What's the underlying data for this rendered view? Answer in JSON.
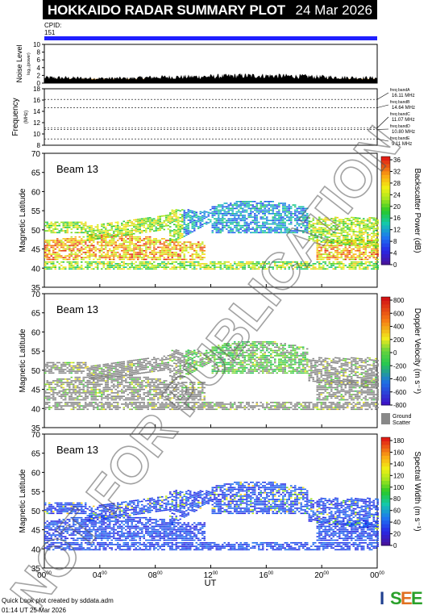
{
  "header": {
    "title": "HOKKAIDO RADAR SUMMARY PLOT",
    "date": "24 Mar 2026"
  },
  "cpid": {
    "label": "CPID:",
    "value": "151"
  },
  "noise": {
    "ylabel": "Noise Level",
    "unit": "log₁₀(power)",
    "ticks": [
      "0",
      "2",
      "4",
      "6",
      "8",
      "10"
    ]
  },
  "frequency": {
    "ylabel": "Frequency",
    "unit": "(MHz)",
    "ticks": [
      "8",
      "10",
      "12",
      "14",
      "16",
      "18"
    ],
    "bands": [
      {
        "name": "freq bandA",
        "value": "16.11 MHz"
      },
      {
        "name": "freq bandB",
        "value": "14.64 MHz"
      },
      {
        "name": "freq bandC",
        "value": "11.07 MHz"
      },
      {
        "name": "freq bandD",
        "value": "10.80 MHz"
      },
      {
        "name": "freq bandE",
        "value": "9.11 MHz"
      }
    ]
  },
  "watermark": "NOT FOR PUBLICATION",
  "panels": [
    {
      "beam": "Beam 13",
      "ylabel": "Magnetic Latitude",
      "cbar_label": "Backscatter Power (dB)",
      "cbar_ticks": [
        "0",
        "4",
        "8",
        "12",
        "16",
        "20",
        "24",
        "28",
        "32",
        "36"
      ]
    },
    {
      "beam": "Beam 13",
      "ylabel": "Magnetic Latitude",
      "cbar_label": "Doppler Velocity (m s⁻¹)",
      "cbar_ticks": [
        "-800",
        "-600",
        "-400",
        "-200",
        "0",
        "200",
        "400",
        "600",
        "800"
      ],
      "ground_scatter": [
        "Ground",
        "Scatter"
      ]
    },
    {
      "beam": "Beam 13",
      "ylabel": "Magnetic Latitude",
      "cbar_label": "Spectral Width (m s⁻¹)",
      "cbar_ticks": [
        "0",
        "20",
        "40",
        "60",
        "80",
        "100",
        "120",
        "140",
        "160",
        "180"
      ]
    }
  ],
  "lat_ticks": [
    "35",
    "40",
    "45",
    "50",
    "55",
    "60",
    "65",
    "70"
  ],
  "x_axis": {
    "label": "UT",
    "ticks": [
      "00",
      "04",
      "08",
      "12",
      "16",
      "20",
      "00"
    ],
    "tick_sup": "00"
  },
  "footer": {
    "line1": "Quick Look plot created by sddata.adm",
    "line2": "01:14 UT 25 Mar 2026",
    "logo": "ISEE"
  },
  "chart_data": [
    {
      "type": "area",
      "ylabel": "Noise Level",
      "ylim": [
        0,
        10
      ],
      "x_range_hours": [
        0,
        24
      ],
      "x": [
        0,
        2,
        4,
        6,
        8,
        10,
        12,
        14,
        16,
        18,
        20,
        22,
        24
      ],
      "values": [
        1.5,
        1.4,
        1.3,
        1.3,
        1.6,
        1.7,
        1.8,
        2.0,
        2.0,
        1.9,
        1.7,
        1.5,
        1.4
      ]
    },
    {
      "type": "line",
      "ylabel": "Frequency",
      "ylim": [
        8,
        18
      ],
      "bands_mhz": [
        16.11,
        14.64,
        11.07,
        10.8,
        9.11
      ]
    },
    {
      "type": "heatmap",
      "title": "Beam 13",
      "zlabel": "Backscatter Power (dB)",
      "zlim": [
        0,
        36
      ],
      "ylim": [
        35,
        70
      ],
      "xlim": [
        0,
        24
      ],
      "colormap": "rainbow",
      "ylabel": "Magnetic Latitude",
      "xlabel": "UT"
    },
    {
      "type": "heatmap",
      "title": "Beam 13",
      "zlabel": "Doppler Velocity (m s⁻¹)",
      "zlim": [
        -800,
        800
      ],
      "ylim": [
        35,
        70
      ],
      "xlim": [
        0,
        24
      ],
      "colormap": "velocity",
      "ylabel": "Magnetic Latitude",
      "xlabel": "UT"
    },
    {
      "type": "heatmap",
      "title": "Beam 13",
      "zlabel": "Spectral Width (m s⁻¹)",
      "zlim": [
        0,
        180
      ],
      "ylim": [
        35,
        70
      ],
      "xlim": [
        0,
        24
      ],
      "colormap": "rainbow",
      "ylabel": "Magnetic Latitude",
      "xlabel": "UT"
    }
  ]
}
